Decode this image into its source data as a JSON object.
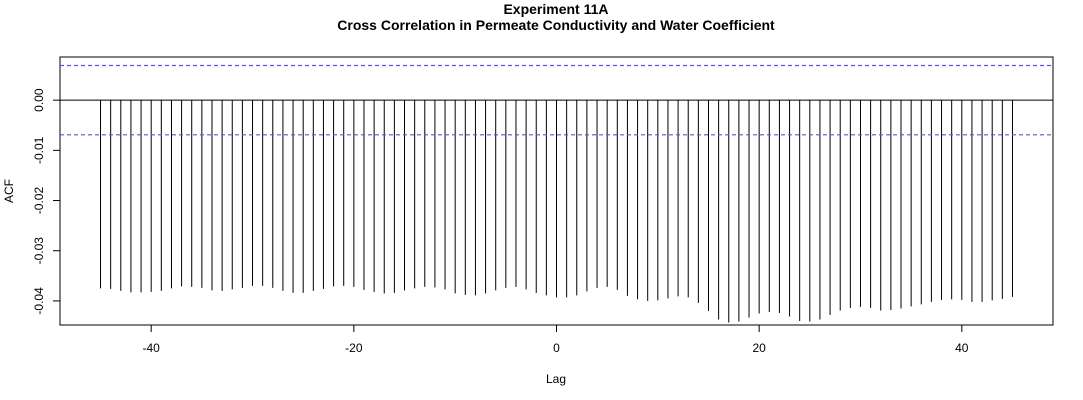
{
  "chart_data": {
    "type": "bar",
    "title": "Experiment  11A",
    "subtitle": "Cross Correlation in Permeate Conductivity and Water Coefficient",
    "xlabel": "Lag",
    "ylabel": "ACF",
    "xlim": [
      -49,
      49
    ],
    "ylim": [
      -0.0448,
      0.0086
    ],
    "x_ticks": [
      -40,
      -20,
      0,
      20,
      40
    ],
    "x_tick_labels": [
      "-40",
      "-20",
      "0",
      "20",
      "40"
    ],
    "y_ticks": [
      0.0,
      -0.01,
      -0.02,
      -0.03,
      -0.04
    ],
    "y_tick_labels": [
      "0.00",
      "-0.01",
      "-0.02",
      "-0.03",
      "-0.04"
    ],
    "confidence_bound": 0.0069,
    "zero_line": true,
    "grid": false,
    "colors": {
      "bars": "#000000",
      "confidence": "#5555dd",
      "frame": "#000000"
    },
    "lags": [
      -45,
      -44,
      -43,
      -42,
      -41,
      -40,
      -39,
      -38,
      -37,
      -36,
      -35,
      -34,
      -33,
      -32,
      -31,
      -30,
      -29,
      -28,
      -27,
      -26,
      -25,
      -24,
      -23,
      -22,
      -21,
      -20,
      -19,
      -18,
      -17,
      -16,
      -15,
      -14,
      -13,
      -12,
      -11,
      -10,
      -9,
      -8,
      -7,
      -6,
      -5,
      -4,
      -3,
      -2,
      -1,
      0,
      1,
      2,
      3,
      4,
      5,
      6,
      7,
      8,
      9,
      10,
      11,
      12,
      13,
      14,
      15,
      16,
      17,
      18,
      19,
      20,
      21,
      22,
      23,
      24,
      25,
      26,
      27,
      28,
      29,
      30,
      31,
      32,
      33,
      34,
      35,
      36,
      37,
      38,
      39,
      40,
      41,
      42,
      43,
      44,
      45
    ],
    "values": [
      -0.0375,
      -0.0376,
      -0.038,
      -0.0383,
      -0.0383,
      -0.0382,
      -0.038,
      -0.0375,
      -0.0371,
      -0.0372,
      -0.0374,
      -0.0379,
      -0.038,
      -0.0377,
      -0.0374,
      -0.037,
      -0.037,
      -0.0374,
      -0.038,
      -0.0384,
      -0.0384,
      -0.038,
      -0.0376,
      -0.0371,
      -0.037,
      -0.0372,
      -0.0378,
      -0.0382,
      -0.0385,
      -0.0384,
      -0.0379,
      -0.0375,
      -0.0372,
      -0.0373,
      -0.0377,
      -0.0385,
      -0.0388,
      -0.0389,
      -0.0385,
      -0.0379,
      -0.0374,
      -0.0372,
      -0.0377,
      -0.0384,
      -0.0389,
      -0.0393,
      -0.0393,
      -0.0389,
      -0.0381,
      -0.0374,
      -0.0372,
      -0.0378,
      -0.039,
      -0.0397,
      -0.04,
      -0.0399,
      -0.0395,
      -0.0391,
      -0.0393,
      -0.0404,
      -0.042,
      -0.0437,
      -0.0443,
      -0.0441,
      -0.0433,
      -0.0425,
      -0.0422,
      -0.0424,
      -0.0431,
      -0.044,
      -0.0441,
      -0.0437,
      -0.0428,
      -0.0419,
      -0.0414,
      -0.0412,
      -0.0414,
      -0.0419,
      -0.0418,
      -0.0415,
      -0.0411,
      -0.0407,
      -0.0402,
      -0.0398,
      -0.0397,
      -0.0398,
      -0.0402,
      -0.0402,
      -0.0399,
      -0.0396,
      -0.0392
    ]
  }
}
